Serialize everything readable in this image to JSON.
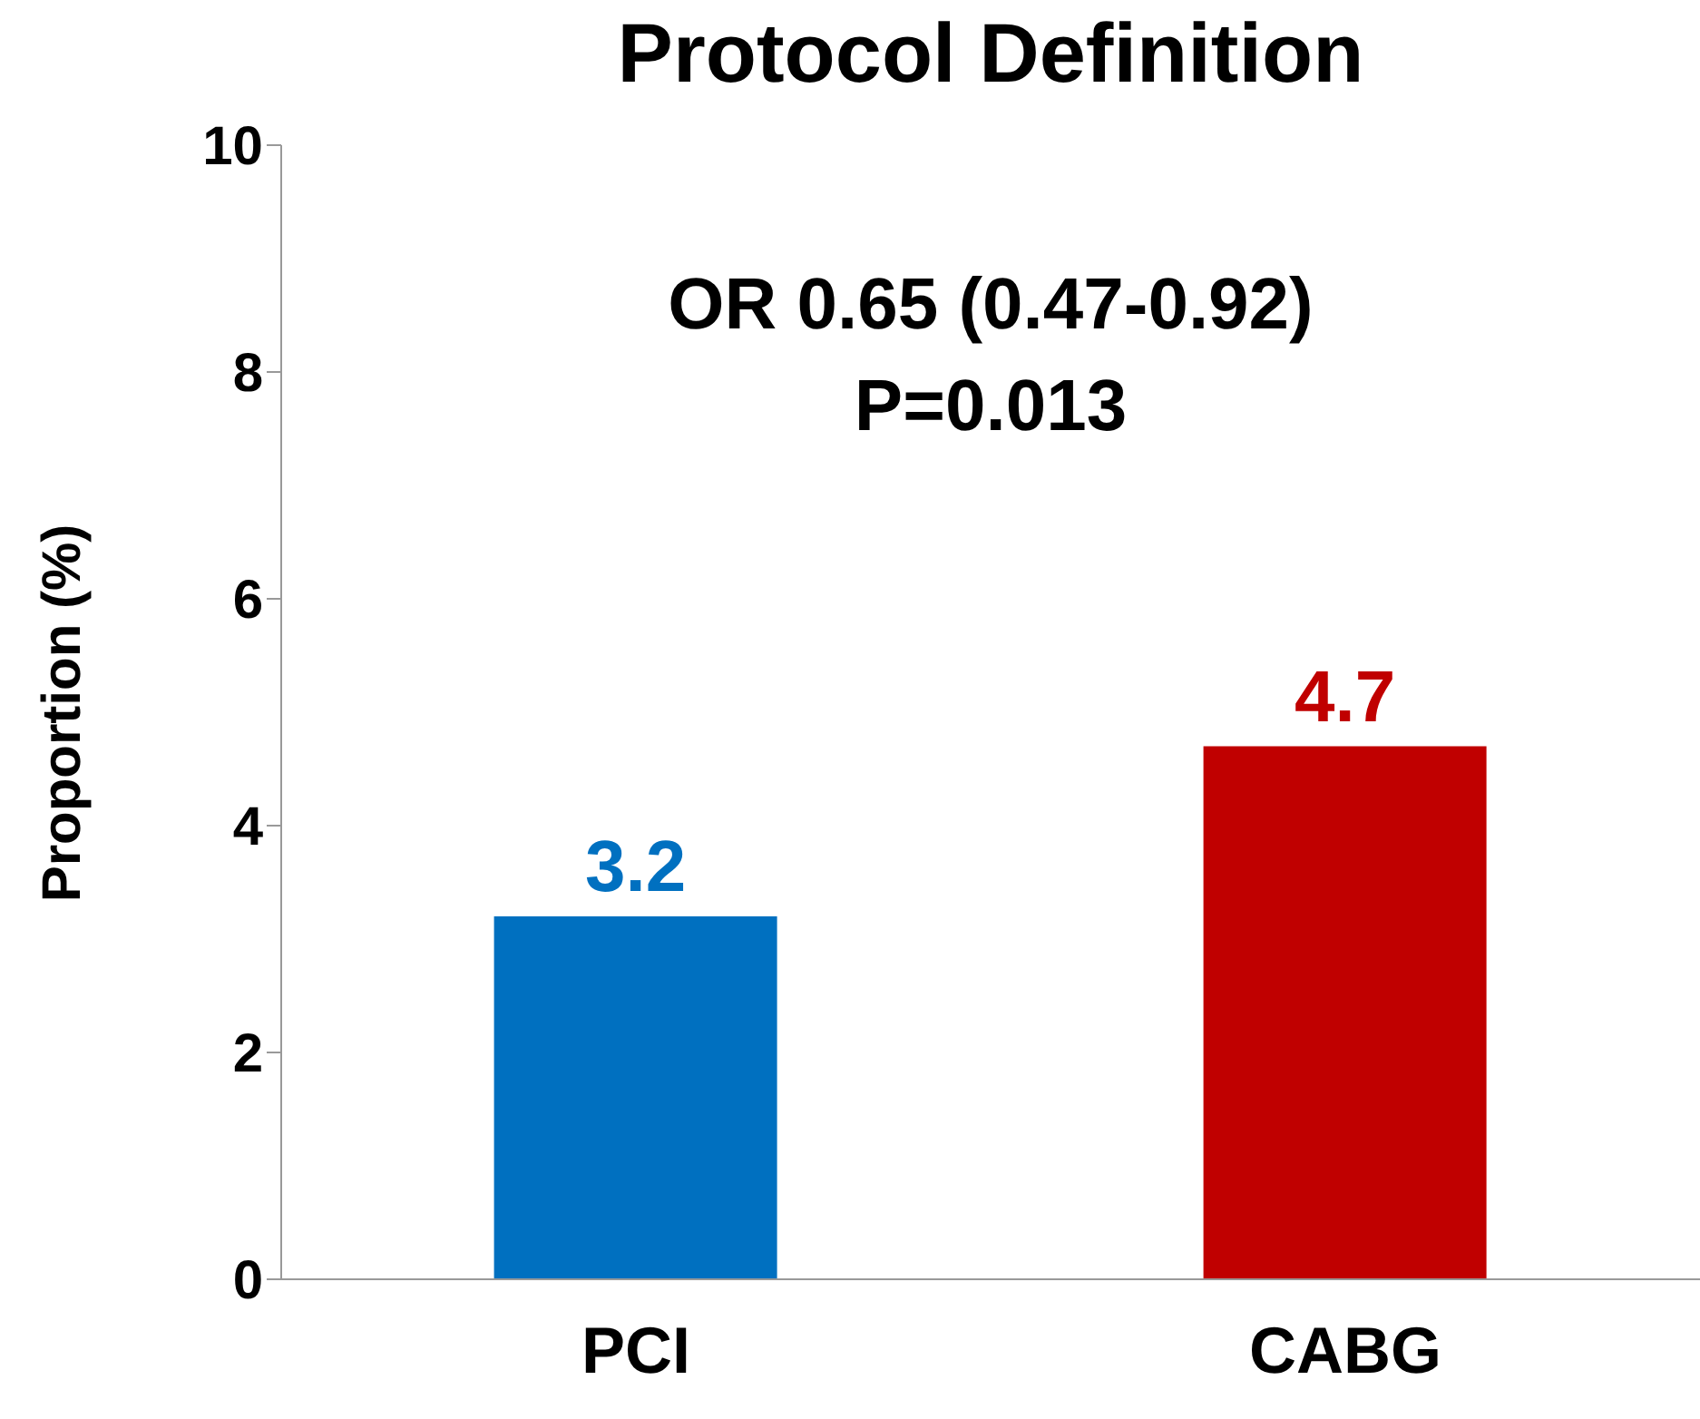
{
  "chart_data": {
    "type": "bar",
    "title": "Protocol Definition",
    "ylabel": "Proportion (%)",
    "categories": [
      "PCI",
      "CABG"
    ],
    "values": [
      3.2,
      4.7
    ],
    "colors": [
      "#0070c0",
      "#c00000"
    ],
    "ylim": [
      0,
      10
    ],
    "yticks": [
      0,
      2,
      4,
      6,
      8,
      10
    ],
    "data_labels": true,
    "annotations": [
      "OR 0.65 (0.47-0.92)",
      "P=0.013"
    ]
  }
}
